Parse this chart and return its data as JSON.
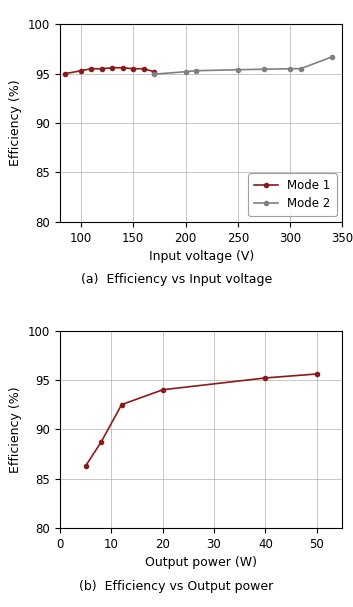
{
  "plot_a": {
    "mode1_x": [
      85,
      100,
      110,
      120,
      130,
      140,
      150,
      160,
      170
    ],
    "mode1_y": [
      95.0,
      95.3,
      95.5,
      95.5,
      95.6,
      95.6,
      95.5,
      95.5,
      95.2
    ],
    "mode2_x": [
      170,
      200,
      210,
      250,
      275,
      300,
      310,
      340
    ],
    "mode2_y": [
      94.95,
      95.2,
      95.3,
      95.4,
      95.45,
      95.5,
      95.5,
      96.7
    ],
    "xlabel": "Input voltage (V)",
    "ylabel": "Efficiency (%)",
    "caption": "(a)  Efficiency vs Input voltage",
    "xlim": [
      80,
      350
    ],
    "xticks": [
      100,
      150,
      200,
      250,
      300,
      350
    ],
    "ylim": [
      80,
      100
    ],
    "yticks": [
      80,
      85,
      90,
      95,
      100
    ],
    "legend_labels": [
      "Mode 1",
      "Mode 2"
    ],
    "mode1_color": "#8B1A1A",
    "mode2_color": "#808080",
    "grid_color": "#b0b0b0"
  },
  "plot_b": {
    "x": [
      5,
      8,
      12,
      20,
      40,
      50
    ],
    "y": [
      86.3,
      88.7,
      92.5,
      94.0,
      95.2,
      95.6
    ],
    "xlabel": "Output power (W)",
    "ylabel": "Efficiency (%)",
    "caption": "(b)  Efficiency vs Output power",
    "xlim": [
      0,
      55
    ],
    "xticks": [
      0,
      10,
      20,
      30,
      40,
      50
    ],
    "ylim": [
      80,
      100
    ],
    "yticks": [
      80,
      85,
      90,
      95,
      100
    ],
    "color": "#8B1A1A",
    "grid_color": "#b0b0b0"
  },
  "bg_color": "#ffffff",
  "figure_width": 3.53,
  "figure_height": 6.07
}
